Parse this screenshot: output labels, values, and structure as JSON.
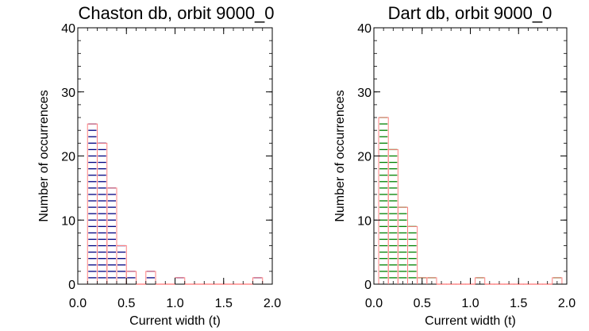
{
  "chart_data": [
    {
      "type": "bar",
      "title": "Chaston db, orbit 9000_0",
      "xlabel": "Current width (t)",
      "ylabel": "Number of occurrences",
      "xlim": [
        0.0,
        2.0
      ],
      "ylim": [
        0,
        40
      ],
      "xticks": [
        "0.0",
        "0.5",
        "1.0",
        "1.5",
        "2.0"
      ],
      "yticks": [
        "0",
        "10",
        "20",
        "30",
        "40"
      ],
      "bin_width": 0.1,
      "bin_starts": [
        0.1,
        0.2,
        0.3,
        0.4,
        0.5,
        0.6,
        0.7,
        0.8,
        0.9,
        1.0,
        1.1,
        1.2,
        1.3,
        1.4,
        1.5,
        1.6,
        1.7,
        1.8
      ],
      "values": [
        25,
        22,
        15,
        6,
        2,
        0,
        2,
        0,
        0,
        1,
        0,
        0,
        0,
        0,
        0,
        0,
        0,
        1
      ],
      "colors": {
        "outline": "#ff8080",
        "hatch": "#000080"
      },
      "grid": false
    },
    {
      "type": "bar",
      "title": "Dart db, orbit 9000_0",
      "xlabel": "Current width (t)",
      "ylabel": "Number of occurrences",
      "xlim": [
        0.0,
        2.0
      ],
      "ylim": [
        0,
        40
      ],
      "xticks": [
        "0.0",
        "0.5",
        "1.0",
        "1.5",
        "2.0"
      ],
      "yticks": [
        "0",
        "10",
        "20",
        "30",
        "40"
      ],
      "bin_width": 0.1,
      "bin_starts": [
        0.05,
        0.15,
        0.25,
        0.35,
        0.45,
        0.55,
        0.65,
        0.75,
        0.85,
        0.95,
        1.05,
        1.15,
        1.25,
        1.35,
        1.45,
        1.55,
        1.65,
        1.75,
        1.85
      ],
      "values": [
        26,
        21,
        12,
        9,
        1,
        1,
        0,
        0,
        0,
        0,
        1,
        0,
        0,
        0,
        0,
        0,
        0,
        0,
        1
      ],
      "colors": {
        "outline": "#ff8080",
        "hatch": "#008000"
      },
      "grid": false
    }
  ]
}
